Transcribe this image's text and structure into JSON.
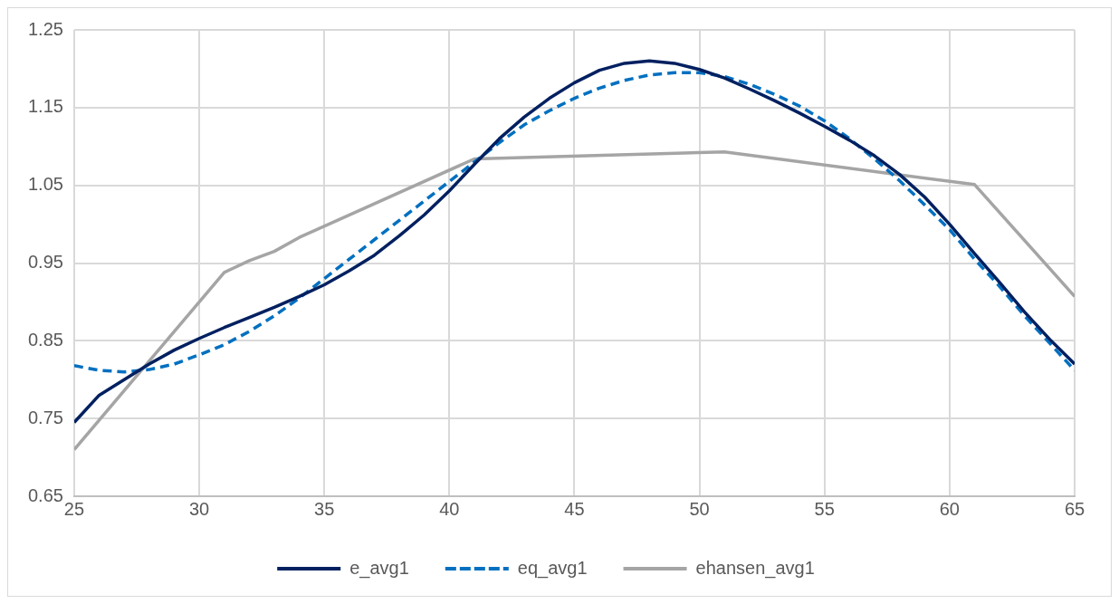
{
  "chart_data": {
    "type": "line",
    "x": [
      25,
      26,
      27,
      28,
      29,
      30,
      31,
      32,
      33,
      34,
      35,
      36,
      37,
      38,
      39,
      40,
      41,
      42,
      43,
      44,
      45,
      46,
      47,
      48,
      49,
      50,
      51,
      52,
      53,
      54,
      55,
      56,
      57,
      58,
      59,
      60,
      61,
      62,
      63,
      64,
      65
    ],
    "series": [
      {
        "name": "e_avg1",
        "color": "#002060",
        "line_style": "solid",
        "values": [
          0.745,
          0.78,
          0.8,
          0.82,
          0.838,
          0.853,
          0.867,
          0.88,
          0.893,
          0.907,
          0.922,
          0.94,
          0.96,
          0.985,
          1.012,
          1.043,
          1.077,
          1.11,
          1.138,
          1.162,
          1.182,
          1.198,
          1.207,
          1.21,
          1.207,
          1.199,
          1.188,
          1.174,
          1.159,
          1.143,
          1.126,
          1.108,
          1.088,
          1.064,
          1.035,
          1.0,
          0.962,
          0.925,
          0.887,
          0.852,
          0.82
        ]
      },
      {
        "name": "eq_avg1",
        "color": "#0070c0",
        "line_style": "dashed",
        "values": [
          0.818,
          0.812,
          0.81,
          0.813,
          0.82,
          0.832,
          0.845,
          0.862,
          0.882,
          0.905,
          0.93,
          0.955,
          0.98,
          1.005,
          1.03,
          1.055,
          1.08,
          1.105,
          1.128,
          1.146,
          1.162,
          1.175,
          1.185,
          1.192,
          1.195,
          1.195,
          1.19,
          1.18,
          1.167,
          1.152,
          1.133,
          1.11,
          1.084,
          1.056,
          1.025,
          0.993,
          0.955,
          0.92,
          0.882,
          0.847,
          0.812
        ]
      },
      {
        "name": "ehansen_avg1",
        "color": "#a5a5a5",
        "line_style": "solid",
        "x": [
          25,
          31,
          32,
          33,
          34,
          41,
          51,
          61,
          65
        ],
        "values": [
          0.71,
          0.938,
          0.953,
          0.965,
          0.983,
          1.084,
          1.093,
          1.051,
          0.907
        ]
      }
    ],
    "xlim": [
      25,
      65
    ],
    "xticks": [
      25,
      30,
      35,
      40,
      45,
      50,
      55,
      60,
      65
    ],
    "ylim": [
      0.65,
      1.25
    ],
    "yticks": [
      {
        "value": 0.65,
        "label": "0.65"
      },
      {
        "value": 0.75,
        "label": "0.75"
      },
      {
        "value": 0.85,
        "label": "0.85"
      },
      {
        "value": 0.95,
        "label": "0.95"
      },
      {
        "value": 1.05,
        "label": "1.05"
      },
      {
        "value": 1.15,
        "label": "1.15"
      },
      {
        "value": 1.25,
        "label": "1.25"
      }
    ],
    "grid": true,
    "legend": "bottom",
    "marker": "none"
  }
}
